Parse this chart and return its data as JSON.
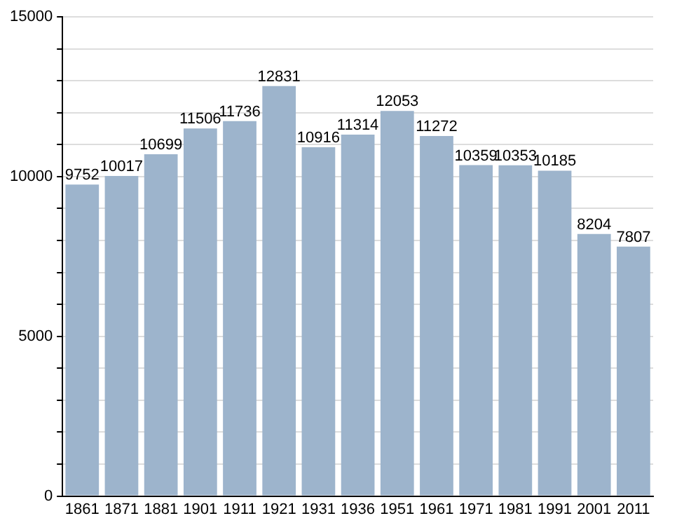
{
  "chart_data": {
    "type": "bar",
    "categories": [
      "1861",
      "1871",
      "1881",
      "1901",
      "1911",
      "1921",
      "1931",
      "1936",
      "1951",
      "1961",
      "1971",
      "1981",
      "1991",
      "2001",
      "2011"
    ],
    "values": [
      9752,
      10017,
      10699,
      11506,
      11736,
      12831,
      10916,
      11314,
      12053,
      11272,
      10359,
      10353,
      10185,
      8204,
      7807
    ],
    "color": "#9db4cc",
    "ylim": [
      0,
      15000
    ],
    "yticks": [
      0,
      {
        "value": 1000,
        "label": null
      },
      {
        "value": 2000,
        "label": null
      },
      {
        "value": 3000,
        "label": null
      },
      {
        "value": 4000,
        "label": null
      },
      5000,
      {
        "value": 6000,
        "label": null
      },
      {
        "value": 7000,
        "label": null
      },
      {
        "value": 8000,
        "label": null
      },
      {
        "value": 9000,
        "label": null
      },
      10000,
      {
        "value": 11000,
        "label": null
      },
      {
        "value": 12000,
        "label": null
      },
      {
        "value": 13000,
        "label": null
      },
      {
        "value": 14000,
        "label": null
      },
      15000
    ],
    "grid": "y",
    "data_labels": true,
    "legend": false
  }
}
